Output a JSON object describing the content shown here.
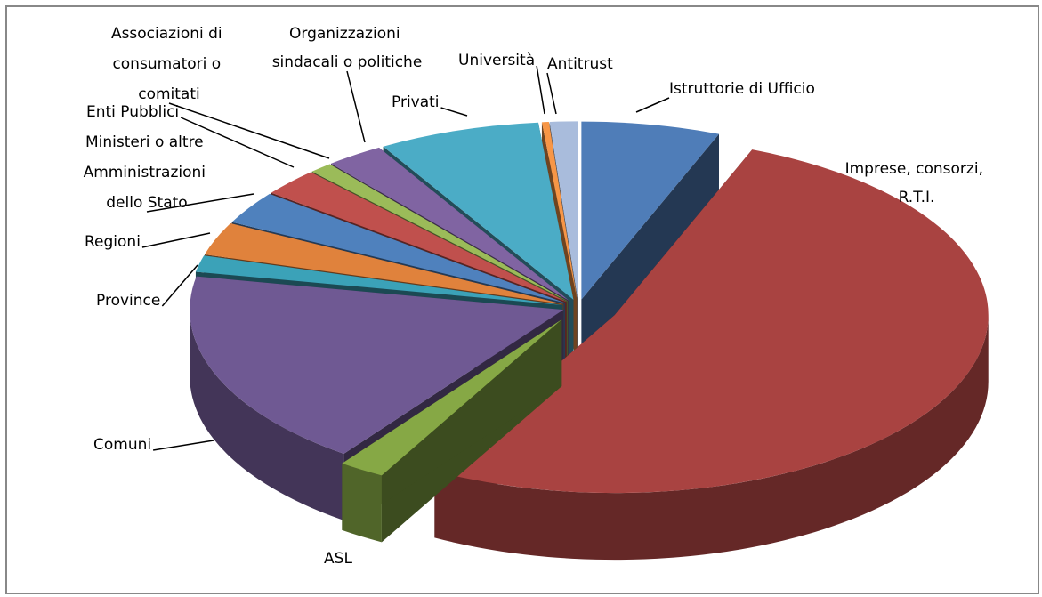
{
  "chart_data": {
    "type": "pie3d",
    "categories": [
      "Istruttorie di Ufficio",
      "Imprese, consorzi, R.T.I.",
      "ASL",
      "Comuni",
      "Province",
      "Regioni",
      "Ministeri o altre Amministrazioni dello Stato",
      "Enti Pubblici",
      "Associazioni di consumatori o comitati",
      "Organizzazioni sindacali o politiche",
      "Privati",
      "Università",
      "Antitrust"
    ],
    "values": [
      6,
      52,
      2,
      18,
      1.5,
      3,
      3,
      2.5,
      1,
      2.5,
      7,
      0.3,
      1.2
    ],
    "colors": [
      "#4f7db8",
      "#a94341",
      "#86a845",
      "#6f5993",
      "#3ba2b8",
      "#e0823c",
      "#4f81bd",
      "#c0504d",
      "#9bbb59",
      "#8064a2",
      "#4bacc6",
      "#f79646",
      "#a9bcdc"
    ]
  }
}
